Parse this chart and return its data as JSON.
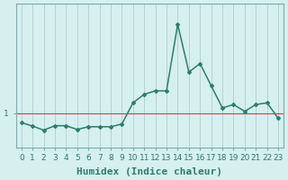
{
  "xlabel": "Humidex (Indice chaleur)",
  "x": [
    0,
    1,
    2,
    3,
    4,
    5,
    6,
    7,
    8,
    9,
    10,
    11,
    12,
    13,
    14,
    15,
    16,
    17,
    18,
    19,
    20,
    21,
    22,
    23
  ],
  "y": [
    0.72,
    0.62,
    0.5,
    0.63,
    0.63,
    0.52,
    0.6,
    0.6,
    0.6,
    0.68,
    1.3,
    1.55,
    1.65,
    1.65,
    3.6,
    2.2,
    2.45,
    1.8,
    1.15,
    1.25,
    1.05,
    1.25,
    1.3,
    0.85
  ],
  "line_color": "#2e7d6e",
  "bg_color": "#d6efef",
  "grid_color": "#b0cece",
  "hline_color": "#cc4444",
  "hline_y": 1.0,
  "ytick_label": "1",
  "ytick_val": 1.0,
  "xlabel_fontsize": 8,
  "tick_fontsize": 6.5,
  "marker": "D",
  "markersize": 2.0,
  "linewidth": 1.1,
  "ylim_min": 0.0,
  "ylim_max": 4.2,
  "xlim_min": -0.5,
  "xlim_max": 23.5
}
